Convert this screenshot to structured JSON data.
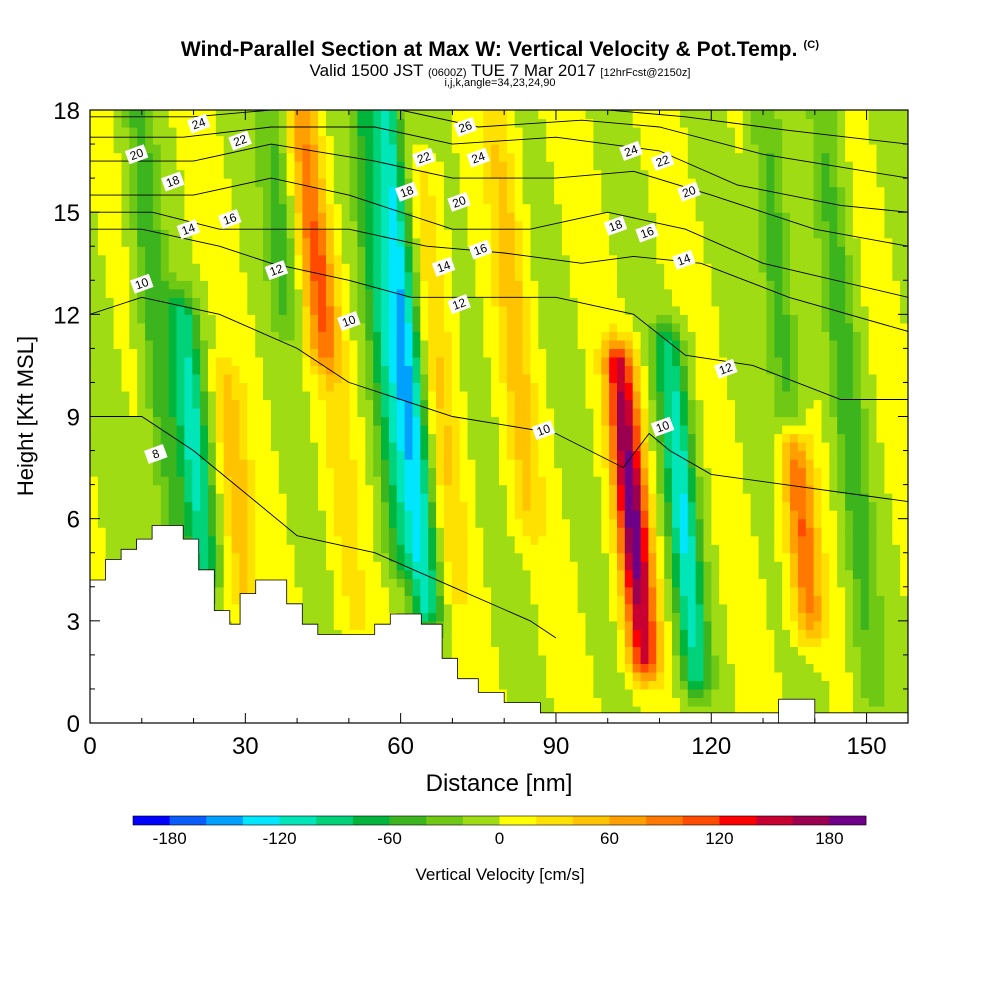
{
  "chart_data": {
    "type": "heatmap",
    "title": "Wind-Parallel Section at Max W: Vertical Velocity & Pot.Temp.",
    "title_mark": "(C)",
    "subtitle": {
      "valid": "Valid 1500 JST",
      "utc": "(0600Z)",
      "date": "TUE 7 Mar 2017",
      "fcst": "[12hrFcst@2150z]"
    },
    "info": "i,j,k,angle=34,23,24,90",
    "xlabel": "Distance [nm]",
    "ylabel": "Height [Kft MSL]",
    "xlim": [
      0,
      158
    ],
    "ylim": [
      0,
      18
    ],
    "xticks": [
      0,
      30,
      60,
      90,
      120,
      150
    ],
    "yticks": [
      0,
      3,
      6,
      9,
      12,
      15,
      18
    ],
    "colorbar": {
      "label": "Vertical Velocity [cm/s]",
      "ticks": [
        -180,
        -120,
        -60,
        0,
        60,
        120,
        180
      ],
      "colors": [
        "#0000ff",
        "#0a5dfb",
        "#00a0ff",
        "#00e6ff",
        "#00e6b9",
        "#00d27a",
        "#00b43c",
        "#3cb41e",
        "#6ec814",
        "#a0dc14",
        "#ffff00",
        "#ffe100",
        "#ffc300",
        "#ffa000",
        "#ff7800",
        "#ff4b00",
        "#ff0000",
        "#c80032",
        "#9b0050",
        "#6e0087"
      ]
    },
    "velocity_features": [
      {
        "x": 16,
        "y_from": 5.5,
        "y_to": 18,
        "w": -55
      },
      {
        "x": 22,
        "y_from": 4.5,
        "y_to": 12,
        "w": -110
      },
      {
        "x": 30,
        "y_from": 3.5,
        "y_to": 10,
        "w": 55
      },
      {
        "x": 38,
        "y_from": 12,
        "y_to": 18,
        "w": -50
      },
      {
        "x": 45,
        "y_from": 11,
        "y_to": 18,
        "w": 90
      },
      {
        "x": 51,
        "y_from": 3,
        "y_to": 14,
        "w": 30
      },
      {
        "x": 60,
        "y_from": 5,
        "y_to": 18,
        "w": -75
      },
      {
        "x": 65,
        "y_from": 3.5,
        "y_to": 18,
        "w": -140
      },
      {
        "x": 71,
        "y_from": 4,
        "y_to": 16,
        "w": 40
      },
      {
        "x": 85,
        "y_from": 6,
        "y_to": 18,
        "w": 50
      },
      {
        "x": 107,
        "y_from": 2,
        "y_to": 10.5,
        "w": 190
      },
      {
        "x": 117,
        "y_from": 1.5,
        "y_to": 11,
        "w": -120
      },
      {
        "x": 139,
        "y_from": 3,
        "y_to": 8,
        "w": 100
      },
      {
        "x": 135,
        "y_from": 9,
        "y_to": 18,
        "w": -55
      },
      {
        "x": 151,
        "y_from": 1,
        "y_to": 18,
        "w": -50
      }
    ],
    "theta_contours": [
      {
        "label": "8",
        "points": [
          [
            0,
            9.0
          ],
          [
            10,
            9.0
          ],
          [
            20,
            8.0
          ],
          [
            28,
            7.0
          ],
          [
            40,
            5.5
          ],
          [
            55,
            5.0
          ],
          [
            70,
            4.0
          ],
          [
            85,
            3.0
          ],
          [
            90,
            2.5
          ]
        ],
        "label_at": [
          6,
          8.1
        ]
      },
      {
        "label": "10",
        "points": [
          [
            0,
            12.0
          ],
          [
            10,
            12.5
          ],
          [
            25,
            12.0
          ],
          [
            40,
            11.0
          ],
          [
            50,
            10.0
          ],
          [
            70,
            9.0
          ],
          [
            90,
            8.5
          ],
          [
            103,
            7.5
          ],
          [
            108,
            8.5
          ],
          [
            112,
            8.0
          ],
          [
            120,
            7.3
          ],
          [
            158,
            6.5
          ]
        ],
        "label_at": [
          10,
          12.9
        ]
      },
      {
        "label": "12",
        "points": [
          [
            0,
            14.5
          ],
          [
            10,
            14.5
          ],
          [
            25,
            14.0
          ],
          [
            35,
            13.5
          ],
          [
            50,
            13.0
          ],
          [
            62,
            12.5
          ],
          [
            75,
            12.5
          ],
          [
            90,
            12.5
          ],
          [
            105,
            12.0
          ],
          [
            115,
            10.8
          ],
          [
            128,
            10.5
          ],
          [
            145,
            9.5
          ],
          [
            158,
            9.5
          ]
        ],
        "label_at": [
          36,
          13.3
        ]
      },
      {
        "label": "14",
        "points": [
          [
            0,
            15.0
          ],
          [
            12,
            15.0
          ],
          [
            25,
            14.5
          ],
          [
            35,
            14.5
          ],
          [
            50,
            14.5
          ],
          [
            65,
            14.0
          ],
          [
            80,
            13.8
          ],
          [
            95,
            13.5
          ],
          [
            105,
            13.7
          ],
          [
            118,
            13.5
          ],
          [
            135,
            12.5
          ],
          [
            158,
            11.5
          ]
        ],
        "label_at": [
          67,
          13.5
        ]
      },
      {
        "label": "16",
        "points": [
          [
            0,
            15.5
          ],
          [
            20,
            15.5
          ],
          [
            35,
            16.0
          ],
          [
            50,
            15.5
          ],
          [
            70,
            14.5
          ],
          [
            85,
            14.5
          ],
          [
            100,
            15.0
          ],
          [
            115,
            14.5
          ],
          [
            130,
            13.5
          ],
          [
            158,
            12.5
          ]
        ],
        "label_at": [
          73,
          14.0
        ]
      },
      {
        "label": "18",
        "points": [
          [
            0,
            16.5
          ],
          [
            20,
            16.5
          ],
          [
            35,
            17.0
          ],
          [
            55,
            16.5
          ],
          [
            70,
            16.0
          ],
          [
            90,
            16.0
          ],
          [
            105,
            16.2
          ],
          [
            120,
            15.5
          ],
          [
            140,
            14.5
          ],
          [
            158,
            14.0
          ]
        ],
        "label_at": [
          61,
          15.6
        ]
      },
      {
        "label": "20",
        "points": [
          [
            0,
            17.2
          ],
          [
            18,
            17.2
          ],
          [
            35,
            17.5
          ],
          [
            55,
            17.5
          ],
          [
            70,
            17.0
          ],
          [
            90,
            17.2
          ],
          [
            110,
            16.8
          ],
          [
            125,
            15.8
          ],
          [
            145,
            15.2
          ],
          [
            158,
            15.0
          ]
        ],
        "label_at": [
          9,
          16.7
        ]
      },
      {
        "label": "22",
        "points": [
          [
            0,
            17.8
          ],
          [
            20,
            17.8
          ],
          [
            35,
            18.0
          ],
          [
            60,
            18.0
          ],
          [
            75,
            17.5
          ],
          [
            95,
            17.7
          ],
          [
            110,
            17.5
          ],
          [
            130,
            16.7
          ],
          [
            158,
            16.0
          ]
        ],
        "label_at": [
          29,
          17.1
        ]
      },
      {
        "label": "24",
        "points": [
          [
            0,
            18.0
          ],
          [
            25,
            18.0
          ],
          [
            60,
            18.0
          ],
          [
            80,
            18.0
          ],
          [
            100,
            18.0
          ],
          [
            115,
            17.8
          ],
          [
            135,
            17.4
          ],
          [
            158,
            17.0
          ]
        ],
        "label_at": [
          21,
          17.6
        ]
      }
    ],
    "contour_labels": [
      {
        "text": "24",
        "x": 21,
        "y": 17.6
      },
      {
        "text": "22",
        "x": 29,
        "y": 17.1
      },
      {
        "text": "20",
        "x": 9,
        "y": 16.7
      },
      {
        "text": "18",
        "x": 16,
        "y": 15.9
      },
      {
        "text": "16",
        "x": 27,
        "y": 14.8
      },
      {
        "text": "14",
        "x": 19,
        "y": 14.5
      },
      {
        "text": "12",
        "x": 36,
        "y": 13.3
      },
      {
        "text": "10",
        "x": 10,
        "y": 12.9
      },
      {
        "text": "10",
        "x": 50,
        "y": 11.8
      },
      {
        "text": "8",
        "x": 12.7,
        "y": 7.9
      },
      {
        "text": "26",
        "x": 72.5,
        "y": 17.5
      },
      {
        "text": "24",
        "x": 75,
        "y": 16.6
      },
      {
        "text": "22",
        "x": 64.5,
        "y": 16.6
      },
      {
        "text": "20",
        "x": 71.3,
        "y": 15.3
      },
      {
        "text": "18",
        "x": 61.2,
        "y": 15.6
      },
      {
        "text": "16",
        "x": 75.4,
        "y": 13.9
      },
      {
        "text": "14",
        "x": 68.3,
        "y": 13.4
      },
      {
        "text": "12",
        "x": 71.3,
        "y": 12.3
      },
      {
        "text": "10",
        "x": 87.6,
        "y": 8.6
      },
      {
        "text": "24",
        "x": 104.5,
        "y": 16.8
      },
      {
        "text": "22",
        "x": 110.6,
        "y": 16.5
      },
      {
        "text": "20",
        "x": 115.7,
        "y": 15.6
      },
      {
        "text": "18",
        "x": 101.5,
        "y": 14.6
      },
      {
        "text": "16",
        "x": 107.6,
        "y": 14.4
      },
      {
        "text": "14",
        "x": 114.7,
        "y": 13.6
      },
      {
        "text": "12",
        "x": 122.8,
        "y": 10.4
      },
      {
        "text": "10",
        "x": 110.6,
        "y": 8.7
      }
    ],
    "terrain": [
      [
        0,
        4.2
      ],
      [
        3,
        4.2
      ],
      [
        3,
        4.8
      ],
      [
        6,
        4.8
      ],
      [
        6,
        5.1
      ],
      [
        9,
        5.1
      ],
      [
        9,
        5.4
      ],
      [
        12,
        5.4
      ],
      [
        12,
        5.8
      ],
      [
        18,
        5.8
      ],
      [
        18,
        5.4
      ],
      [
        21,
        5.4
      ],
      [
        21,
        4.5
      ],
      [
        24,
        4.5
      ],
      [
        24,
        3.3
      ],
      [
        27,
        3.3
      ],
      [
        27,
        2.9
      ],
      [
        29,
        2.9
      ],
      [
        29,
        3.8
      ],
      [
        32,
        3.8
      ],
      [
        32,
        4.2
      ],
      [
        38,
        4.2
      ],
      [
        38,
        3.5
      ],
      [
        41,
        3.5
      ],
      [
        41,
        2.9
      ],
      [
        44,
        2.9
      ],
      [
        44,
        2.6
      ],
      [
        55,
        2.6
      ],
      [
        55,
        2.9
      ],
      [
        58,
        2.9
      ],
      [
        58,
        3.2
      ],
      [
        64,
        3.2
      ],
      [
        64,
        2.9
      ],
      [
        68,
        2.9
      ],
      [
        68,
        1.9
      ],
      [
        71,
        1.9
      ],
      [
        71,
        1.3
      ],
      [
        75,
        1.3
      ],
      [
        75,
        0.9
      ],
      [
        80,
        0.9
      ],
      [
        80,
        0.6
      ],
      [
        87,
        0.6
      ],
      [
        87,
        0.3
      ],
      [
        158,
        0.3
      ],
      [
        158,
        0
      ]
    ],
    "terrain_bumps": [
      [
        133,
        135,
        140,
        0.7
      ]
    ]
  }
}
